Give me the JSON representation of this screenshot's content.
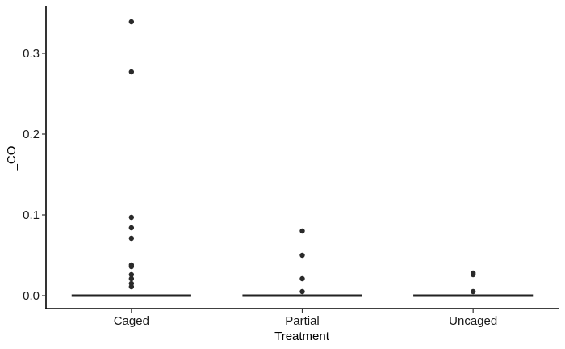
{
  "chart_data": {
    "type": "boxplot",
    "xlabel": "Treatment",
    "ylabel": "_CO",
    "ylim": [
      -0.016,
      0.358
    ],
    "y_ticks": [
      0.0,
      0.1,
      0.2,
      0.3
    ],
    "y_tick_labels": [
      "0.0",
      "0.1",
      "0.2",
      "0.3"
    ],
    "categories": [
      "Caged",
      "Partial",
      "Uncaged"
    ],
    "medians": [
      0.0,
      0.0,
      0.0
    ],
    "outliers": [
      [
        0.339,
        0.277,
        0.097,
        0.084,
        0.071,
        0.038,
        0.036,
        0.026,
        0.021,
        0.015,
        0.011
      ],
      [
        0.08,
        0.05,
        0.021,
        0.005
      ],
      [
        0.028,
        0.026,
        0.005
      ]
    ],
    "grid": false,
    "legend": "none"
  }
}
